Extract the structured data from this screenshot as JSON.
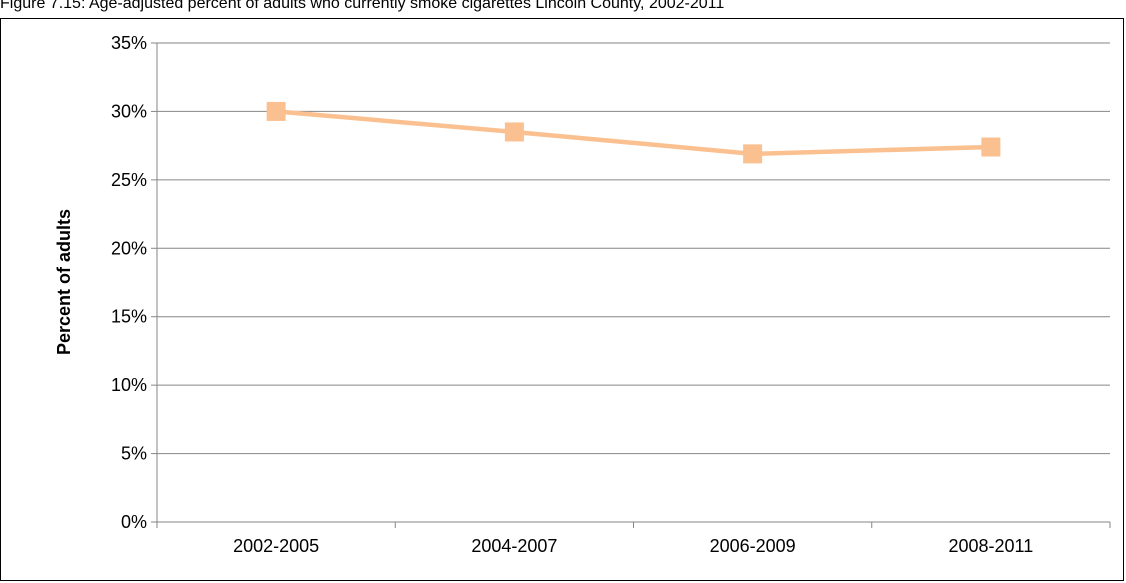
{
  "chart_data": {
    "type": "line",
    "title": "Figure 7.15: Age-adjusted percent of adults who currently smoke cigarettes Lincoln County, 2002-2011",
    "xlabel": "",
    "ylabel": "Percent of adults",
    "categories": [
      "2002-2005",
      "2004-2007",
      "2006-2009",
      "2008-2011"
    ],
    "series": [
      {
        "values": [
          30.0,
          28.5,
          26.9,
          27.4
        ],
        "color": "#FAC090",
        "marker": "square"
      }
    ],
    "ylim": [
      0,
      35
    ],
    "yticks": [
      "0%",
      "5%",
      "10%",
      "15%",
      "20%",
      "25%",
      "30%",
      "35%"
    ],
    "grid": true,
    "legend": "none"
  }
}
